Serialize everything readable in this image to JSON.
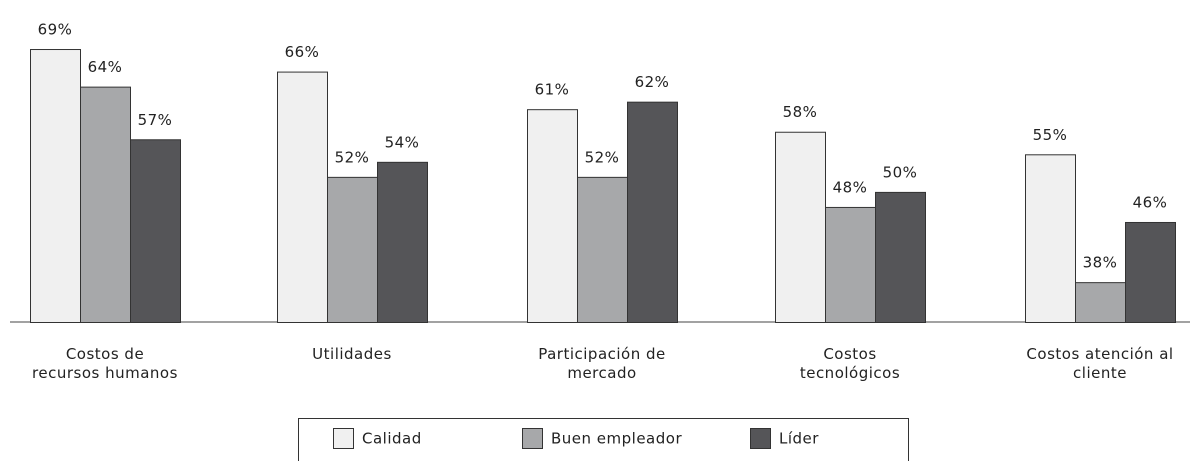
{
  "chart_data": {
    "type": "bar",
    "categories": [
      "Costos de\nrecursos humanos",
      "Utilidades",
      "Participación de\nmercado",
      "Costos\ntecnológicos",
      "Costos atención al\ncliente"
    ],
    "series": [
      {
        "name": "Calidad",
        "color": "#f0f0f0",
        "values": [
          69,
          66,
          61,
          58,
          55
        ],
        "value_labels": [
          "69%",
          "66%",
          "61%",
          "58%",
          "55%"
        ]
      },
      {
        "name": "Buen empleador",
        "color": "#a7a8aa",
        "values": [
          64,
          52,
          52,
          48,
          38
        ],
        "value_labels": [
          "64%",
          "52%",
          "52%",
          "48%",
          "38%"
        ]
      },
      {
        "name": "Líder",
        "color": "#555558",
        "values": [
          57,
          54,
          62,
          50,
          46
        ],
        "value_labels": [
          "57%",
          "54%",
          "62%",
          "50%",
          "46%"
        ]
      }
    ],
    "ylim": [
      32.7,
      70
    ],
    "legend": "bottom"
  }
}
